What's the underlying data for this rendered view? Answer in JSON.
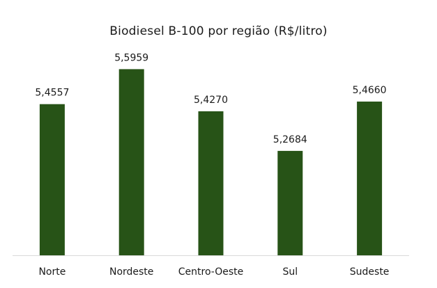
{
  "chart_data": {
    "type": "bar",
    "title": "Biodiesel B-100 por região (R$/litro)",
    "categories": [
      "Norte",
      "Nordeste",
      "Centro-Oeste",
      "Sul",
      "Sudeste"
    ],
    "values": [
      5.4557,
      5.5959,
      5.427,
      5.2684,
      5.466
    ],
    "data_labels": [
      "5,4557",
      "5,5959",
      "5,4270",
      "5,2684",
      "5,4660"
    ],
    "xlabel": "",
    "ylabel": "",
    "ylim": [
      4.85,
      5.65
    ],
    "grid": false,
    "legend": "none",
    "bar_color": "#275317",
    "axis_color": "#d9d9d9",
    "text_color": "#1a1a1a"
  }
}
